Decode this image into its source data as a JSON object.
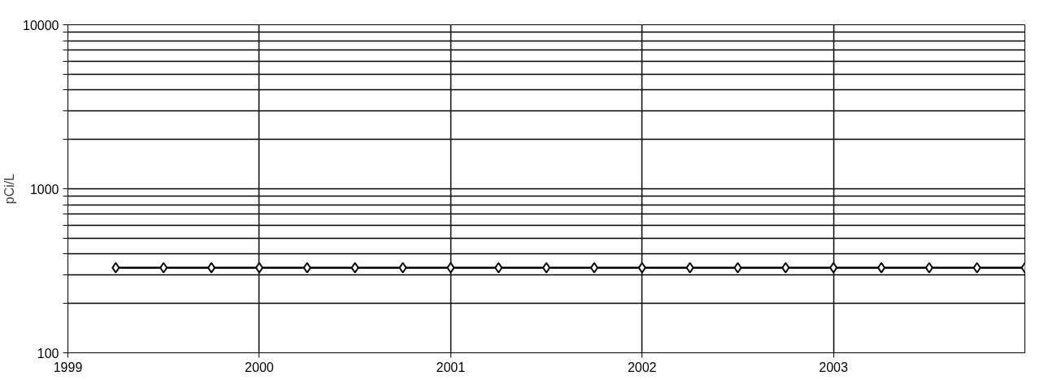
{
  "chart_data": {
    "type": "line",
    "ylabel": "pCi/L",
    "x": [
      1999.25,
      1999.5,
      1999.75,
      2000.0,
      2000.25,
      2000.5,
      2000.75,
      2001.0,
      2001.25,
      2001.5,
      2001.75,
      2002.0,
      2002.25,
      2002.5,
      2002.75,
      2003.0,
      2003.25,
      2003.5,
      2003.75,
      2004.0
    ],
    "series": [
      {
        "color": "#000000",
        "values": [
          330,
          330,
          330,
          330,
          330,
          330,
          330,
          330,
          330,
          330,
          330,
          330,
          330,
          330,
          330,
          330,
          330,
          330,
          330,
          330
        ]
      }
    ],
    "xlim": [
      1999,
      2004
    ],
    "xticks": [
      1999,
      2000,
      2001,
      2002,
      2003
    ],
    "ylim": [
      100,
      10000
    ],
    "yticks": [
      100,
      {
        "value": 200,
        "label": null
      },
      {
        "value": 300,
        "label": null
      },
      {
        "value": 400,
        "label": null
      },
      {
        "value": 500,
        "label": null
      },
      {
        "value": 600,
        "label": null
      },
      {
        "value": 700,
        "label": null
      },
      {
        "value": 800,
        "label": null
      },
      {
        "value": 900,
        "label": null
      },
      1000,
      {
        "value": 2000,
        "label": null
      },
      {
        "value": 3000,
        "label": null
      },
      {
        "value": 4000,
        "label": null
      },
      {
        "value": 5000,
        "label": null
      },
      {
        "value": 6000,
        "label": null
      },
      {
        "value": 7000,
        "label": null
      },
      {
        "value": 8000,
        "label": null
      },
      {
        "value": 9000,
        "label": null
      },
      10000
    ],
    "log": true,
    "grid": true,
    "marker": "diamond",
    "line_style": "solid"
  }
}
